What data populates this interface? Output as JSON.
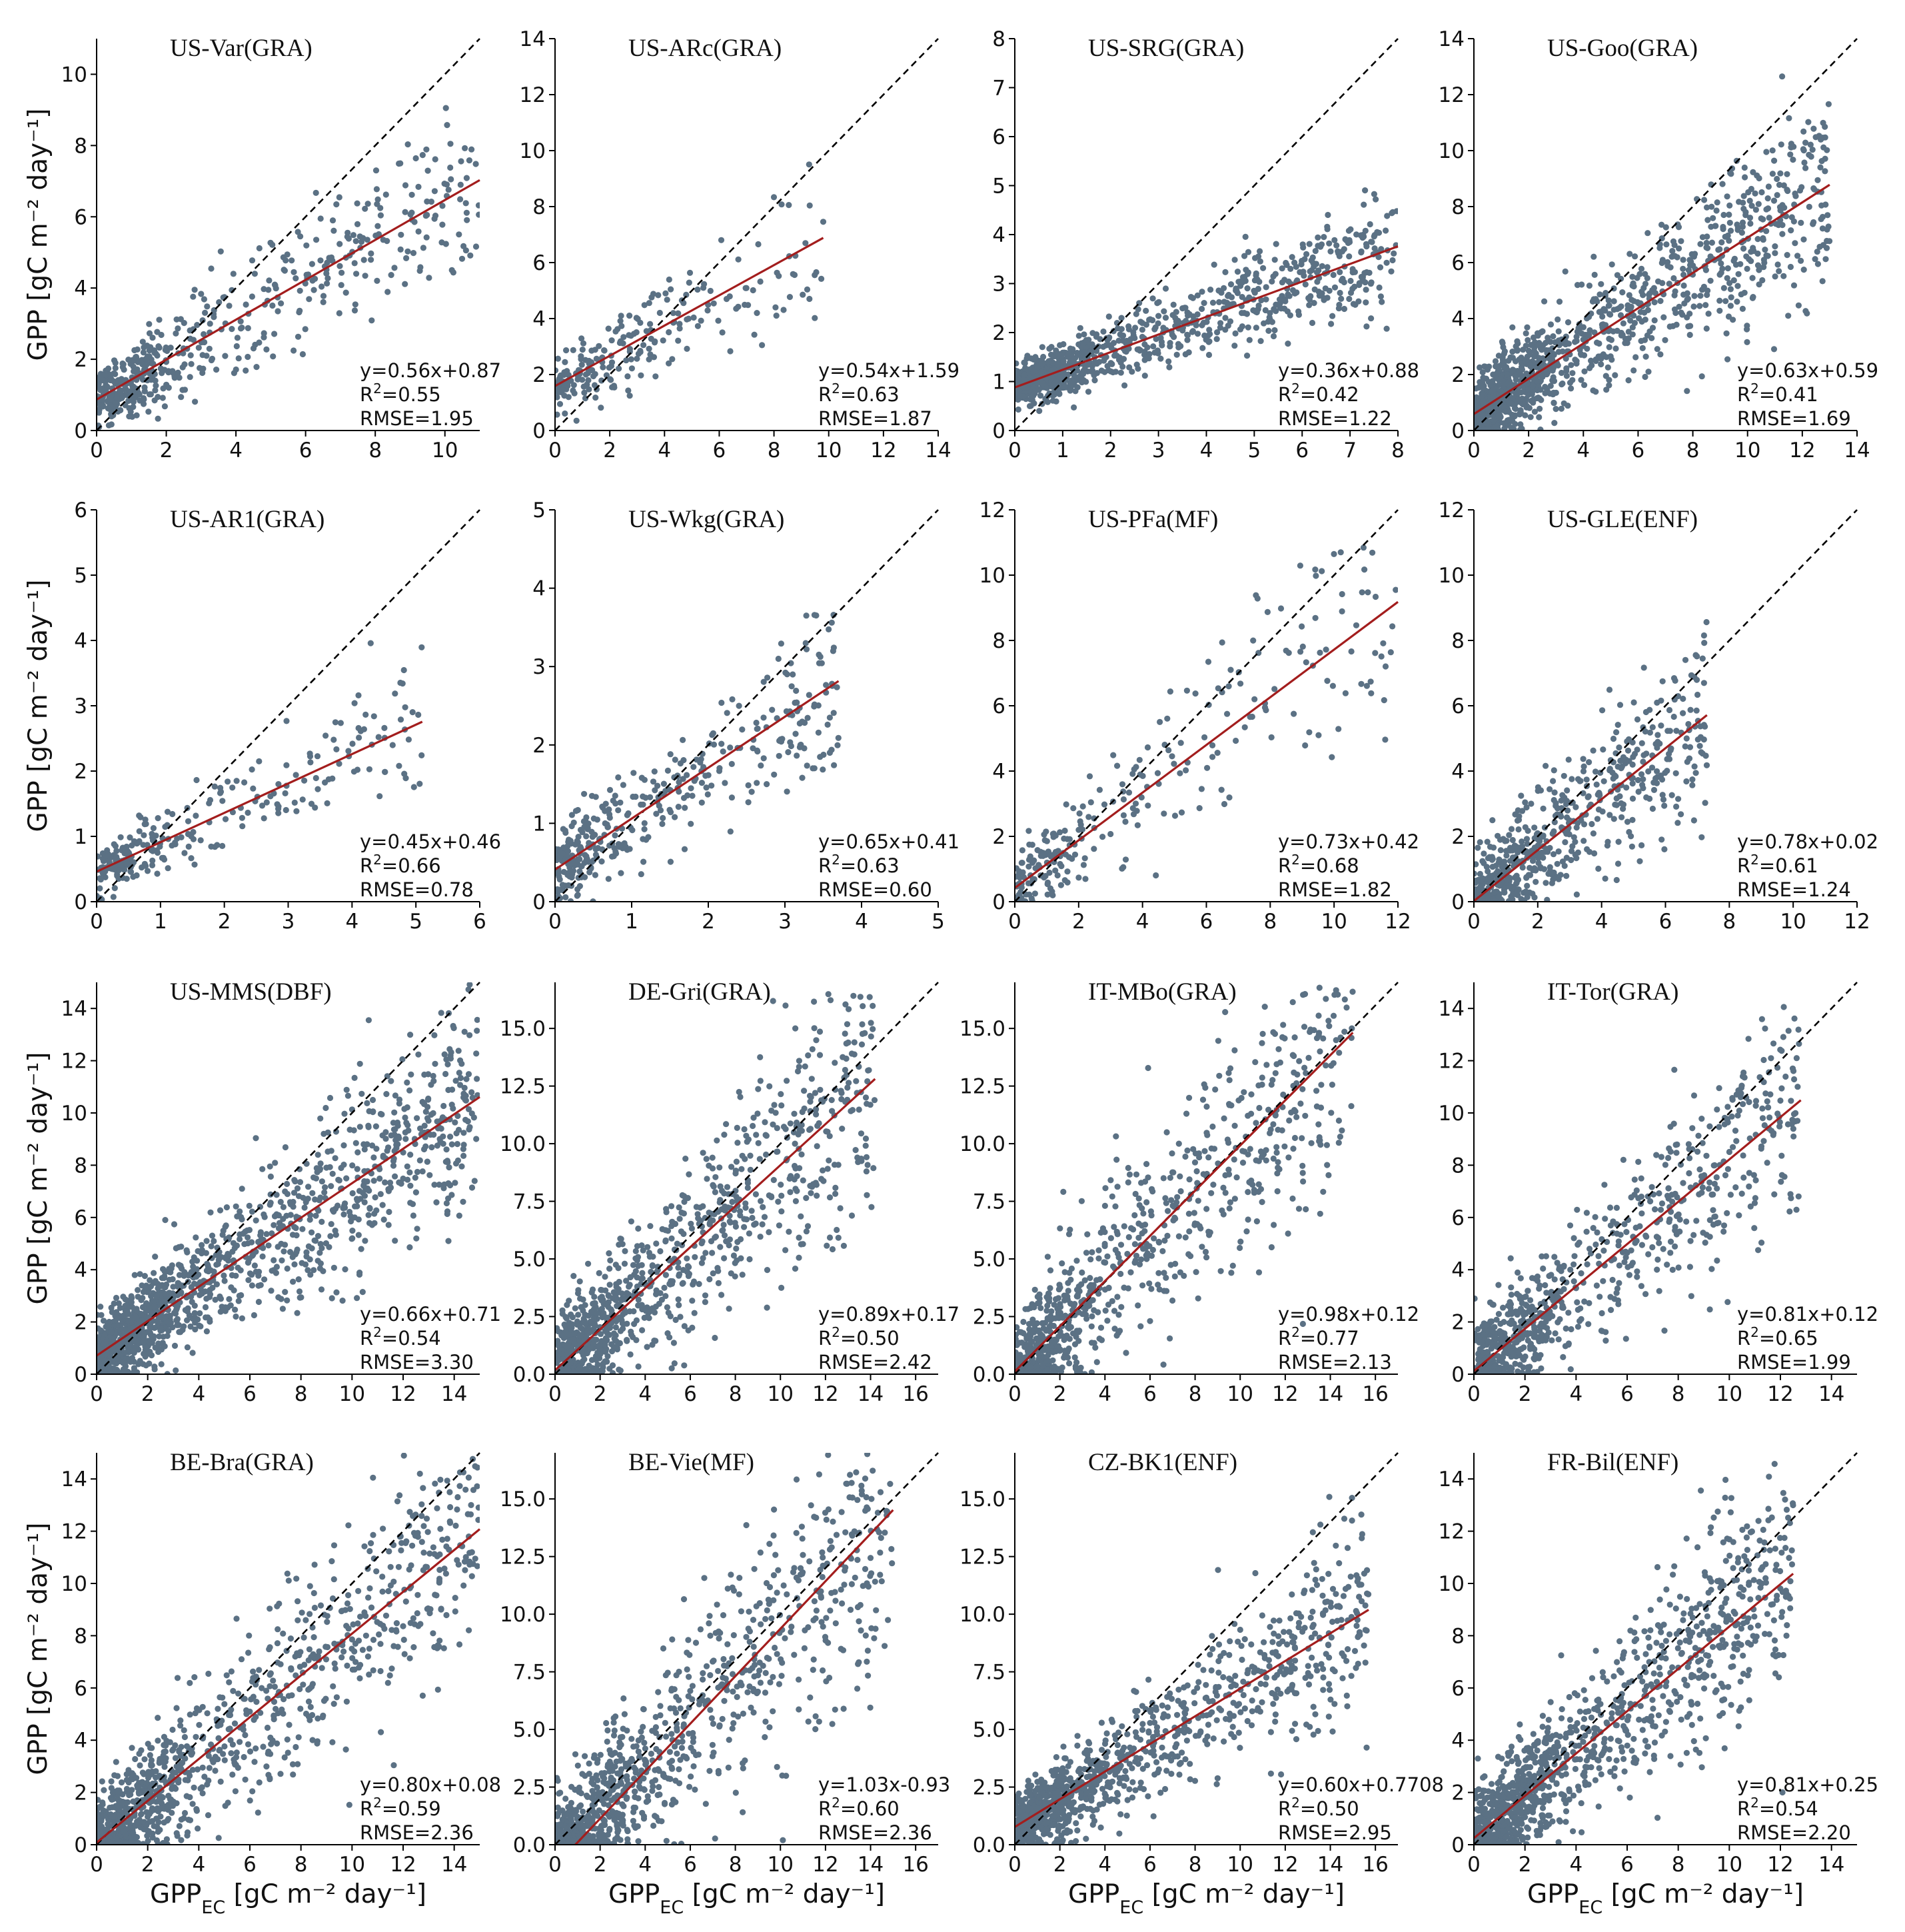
{
  "figure": {
    "ylabel": "GPP [gC m⁻² day⁻¹]",
    "xlabel": "GPP",
    "xlabel_sub": "EC",
    "xlabel_unit": " [gC m⁻² day⁻¹]",
    "colors": {
      "points": "#5b7184",
      "fit": "#a31d1d",
      "one_to_one": "#000000"
    }
  },
  "chart_data": [
    {
      "type": "scatter",
      "title": "US-Var(GRA)",
      "xlim": [
        0,
        11
      ],
      "ylim": [
        0,
        11
      ],
      "xticks": [
        "0",
        "2",
        "4",
        "6",
        "8",
        "10"
      ],
      "yticks": [
        "0",
        "2",
        "4",
        "6",
        "8",
        "10"
      ],
      "slope": 0.56,
      "intercept": 0.87,
      "fit_end": 11,
      "equation": "y=0.56x+0.87",
      "r2_label": "R",
      "r2_value": "=0.55",
      "rmse": "RMSE=1.95",
      "n": 520,
      "seed": 11
    },
    {
      "type": "scatter",
      "title": "US-ARc(GRA)",
      "xlim": [
        0,
        14
      ],
      "ylim": [
        0,
        14
      ],
      "xticks": [
        "0",
        "2",
        "4",
        "6",
        "8",
        "10",
        "12",
        "14"
      ],
      "yticks": [
        "0",
        "2",
        "4",
        "6",
        "8",
        "10",
        "12",
        "14"
      ],
      "slope": 0.54,
      "intercept": 1.59,
      "fit_end": 9.8,
      "equation": "y=0.54x+1.59",
      "r2_label": "R",
      "r2_value": "=0.63",
      "rmse": "RMSE=1.87",
      "n": 230,
      "seed": 12
    },
    {
      "type": "scatter",
      "title": "US-SRG(GRA)",
      "xlim": [
        0,
        8
      ],
      "ylim": [
        0,
        8
      ],
      "xticks": [
        "0",
        "1",
        "2",
        "3",
        "4",
        "5",
        "6",
        "7",
        "8"
      ],
      "yticks": [
        "0",
        "1",
        "2",
        "3",
        "4",
        "5",
        "6",
        "7",
        "8"
      ],
      "slope": 0.36,
      "intercept": 0.88,
      "fit_end": 8,
      "equation": "y=0.36x+0.88",
      "r2_label": "R",
      "r2_value": "=0.42",
      "rmse": "RMSE=1.22",
      "n": 950,
      "seed": 13
    },
    {
      "type": "scatter",
      "title": "US-Goo(GRA)",
      "xlim": [
        0,
        14
      ],
      "ylim": [
        0,
        14
      ],
      "xticks": [
        "0",
        "2",
        "4",
        "6",
        "8",
        "10",
        "12",
        "14"
      ],
      "yticks": [
        "0",
        "2",
        "4",
        "6",
        "8",
        "10",
        "12",
        "14"
      ],
      "slope": 0.63,
      "intercept": 0.59,
      "fit_end": 13,
      "equation": "y=0.63x+0.59",
      "r2_label": "R",
      "r2_value": "=0.41",
      "rmse": "RMSE=1.69",
      "n": 1100,
      "seed": 14
    },
    {
      "type": "scatter",
      "title": "US-AR1(GRA)",
      "xlim": [
        0,
        6
      ],
      "ylim": [
        0,
        6
      ],
      "xticks": [
        "0",
        "1",
        "2",
        "3",
        "4",
        "5",
        "6"
      ],
      "yticks": [
        "0",
        "1",
        "2",
        "3",
        "4",
        "5",
        "6"
      ],
      "slope": 0.45,
      "intercept": 0.46,
      "fit_end": 5.1,
      "equation": "y=0.45x+0.46",
      "r2_label": "R",
      "r2_value": "=0.66",
      "rmse": "RMSE=0.78",
      "n": 260,
      "seed": 15
    },
    {
      "type": "scatter",
      "title": "US-Wkg(GRA)",
      "xlim": [
        0,
        5
      ],
      "ylim": [
        0,
        5
      ],
      "xticks": [
        "0",
        "1",
        "2",
        "3",
        "4",
        "5"
      ],
      "yticks": [
        "0",
        "1",
        "2",
        "3",
        "4",
        "5"
      ],
      "slope": 0.65,
      "intercept": 0.41,
      "fit_end": 3.7,
      "equation": "y=0.65x+0.41",
      "r2_label": "R",
      "r2_value": "=0.63",
      "rmse": "RMSE=0.60",
      "n": 380,
      "seed": 16
    },
    {
      "type": "scatter",
      "title": "US-PFa(MF)",
      "xlim": [
        0,
        12
      ],
      "ylim": [
        0,
        12
      ],
      "xticks": [
        "0",
        "2",
        "4",
        "6",
        "8",
        "10",
        "12"
      ],
      "yticks": [
        "0",
        "2",
        "4",
        "6",
        "8",
        "10",
        "12"
      ],
      "slope": 0.73,
      "intercept": 0.42,
      "fit_end": 12,
      "equation": "y=0.73x+0.42",
      "r2_label": "R",
      "r2_value": "=0.68",
      "rmse": "RMSE=1.82",
      "n": 260,
      "seed": 17
    },
    {
      "type": "scatter",
      "title": "US-GLE(ENF)",
      "xlim": [
        0,
        12
      ],
      "ylim": [
        0,
        12
      ],
      "xticks": [
        "0",
        "2",
        "4",
        "6",
        "8",
        "10",
        "12"
      ],
      "yticks": [
        "0",
        "2",
        "4",
        "6",
        "8",
        "10",
        "12"
      ],
      "slope": 0.78,
      "intercept": 0.02,
      "fit_end": 7.3,
      "equation": "y=0.78x+0.02",
      "r2_label": "R",
      "r2_value": "=0.61",
      "rmse": "RMSE=1.24",
      "n": 620,
      "seed": 18
    },
    {
      "type": "scatter",
      "title": "US-MMS(DBF)",
      "xlim": [
        0,
        15
      ],
      "ylim": [
        0,
        15
      ],
      "xticks": [
        "0",
        "2",
        "4",
        "6",
        "8",
        "10",
        "12",
        "14"
      ],
      "yticks": [
        "0",
        "2",
        "4",
        "6",
        "8",
        "10",
        "12",
        "14"
      ],
      "slope": 0.66,
      "intercept": 0.71,
      "fit_end": 15,
      "equation": "y=0.66x+0.71",
      "r2_label": "R",
      "r2_value": "=0.54",
      "rmse": "RMSE=3.30",
      "n": 1300,
      "seed": 19
    },
    {
      "type": "scatter",
      "title": "DE-Gri(GRA)",
      "xlim": [
        0,
        17
      ],
      "ylim": [
        0,
        17
      ],
      "xticks": [
        "0",
        "2",
        "4",
        "6",
        "8",
        "10",
        "12",
        "14",
        "16"
      ],
      "yticks": [
        "0.0",
        "2.5",
        "5.0",
        "7.5",
        "10.0",
        "12.5",
        "15.0"
      ],
      "ytick_values": [
        0,
        2.5,
        5,
        7.5,
        10,
        12.5,
        15
      ],
      "slope": 0.89,
      "intercept": 0.17,
      "fit_end": 14.2,
      "equation": "y=0.89x+0.17",
      "r2_label": "R",
      "r2_value": "=0.50",
      "rmse": "RMSE=2.42",
      "n": 950,
      "seed": 20
    },
    {
      "type": "scatter",
      "title": "IT-MBo(GRA)",
      "xlim": [
        0,
        17
      ],
      "ylim": [
        0,
        17
      ],
      "xticks": [
        "0",
        "2",
        "4",
        "6",
        "8",
        "10",
        "12",
        "14",
        "16"
      ],
      "yticks": [
        "0.0",
        "2.5",
        "5.0",
        "7.5",
        "10.0",
        "12.5",
        "15.0"
      ],
      "ytick_values": [
        0,
        2.5,
        5,
        7.5,
        10,
        12.5,
        15
      ],
      "slope": 0.98,
      "intercept": 0.12,
      "fit_end": 15,
      "equation": "y=0.98x+0.12",
      "r2_label": "R",
      "r2_value": "=0.77",
      "rmse": "RMSE=2.13",
      "n": 800,
      "seed": 21
    },
    {
      "type": "scatter",
      "title": "IT-Tor(GRA)",
      "xlim": [
        0,
        15
      ],
      "ylim": [
        0,
        15
      ],
      "xticks": [
        "0",
        "2",
        "4",
        "6",
        "8",
        "10",
        "12",
        "14"
      ],
      "yticks": [
        "0",
        "2",
        "4",
        "6",
        "8",
        "10",
        "12",
        "14"
      ],
      "slope": 0.81,
      "intercept": 0.12,
      "fit_end": 12.8,
      "equation": "y=0.81x+0.12",
      "r2_label": "R",
      "r2_value": "=0.65",
      "rmse": "RMSE=1.99",
      "n": 750,
      "seed": 22
    },
    {
      "type": "scatter",
      "title": "BE-Bra(GRA)",
      "xlim": [
        0,
        15
      ],
      "ylim": [
        0,
        15
      ],
      "xticks": [
        "0",
        "2",
        "4",
        "6",
        "8",
        "10",
        "12",
        "14"
      ],
      "yticks": [
        "0",
        "2",
        "4",
        "6",
        "8",
        "10",
        "12",
        "14"
      ],
      "slope": 0.8,
      "intercept": 0.08,
      "fit_end": 15,
      "equation": "y=0.80x+0.08",
      "r2_label": "R",
      "r2_value": "=0.59",
      "rmse": "RMSE=2.36",
      "n": 1000,
      "seed": 23
    },
    {
      "type": "scatter",
      "title": "BE-Vie(MF)",
      "xlim": [
        0,
        17
      ],
      "ylim": [
        0,
        17
      ],
      "xticks": [
        "0",
        "2",
        "4",
        "6",
        "8",
        "10",
        "12",
        "14",
        "16"
      ],
      "yticks": [
        "0.0",
        "2.5",
        "5.0",
        "7.5",
        "10.0",
        "12.5",
        "15.0"
      ],
      "ytick_values": [
        0,
        2.5,
        5,
        7.5,
        10,
        12.5,
        15
      ],
      "slope": 1.03,
      "intercept": -0.93,
      "fit_end": 15,
      "equation": "y=1.03x-0.93",
      "r2_label": "R",
      "r2_value": "=0.60",
      "rmse": "RMSE=2.36",
      "n": 1000,
      "seed": 24
    },
    {
      "type": "scatter",
      "title": "CZ-BK1(ENF)",
      "xlim": [
        0,
        17
      ],
      "ylim": [
        0,
        17
      ],
      "xticks": [
        "0",
        "2",
        "4",
        "6",
        "8",
        "10",
        "12",
        "14",
        "16"
      ],
      "yticks": [
        "0.0",
        "2.5",
        "5.0",
        "7.5",
        "10.0",
        "12.5",
        "15.0"
      ],
      "ytick_values": [
        0,
        2.5,
        5,
        7.5,
        10,
        12.5,
        15
      ],
      "slope": 0.6,
      "intercept": 0.7708,
      "fit_end": 15.7,
      "equation": "y=0.60x+0.7708",
      "r2_label": "R",
      "r2_value": "=0.50",
      "rmse": "RMSE=2.95",
      "n": 1000,
      "seed": 25
    },
    {
      "type": "scatter",
      "title": "FR-Bil(ENF)",
      "xlim": [
        0,
        15
      ],
      "ylim": [
        0,
        15
      ],
      "xticks": [
        "0",
        "2",
        "4",
        "6",
        "8",
        "10",
        "12",
        "14"
      ],
      "yticks": [
        "0",
        "2",
        "4",
        "6",
        "8",
        "10",
        "12",
        "14"
      ],
      "slope": 0.81,
      "intercept": 0.25,
      "fit_end": 12.5,
      "equation": "y=0.81x+0.25",
      "r2_label": "R",
      "r2_value": "=0.54",
      "rmse": "RMSE=2.20",
      "n": 1100,
      "seed": 26
    }
  ]
}
